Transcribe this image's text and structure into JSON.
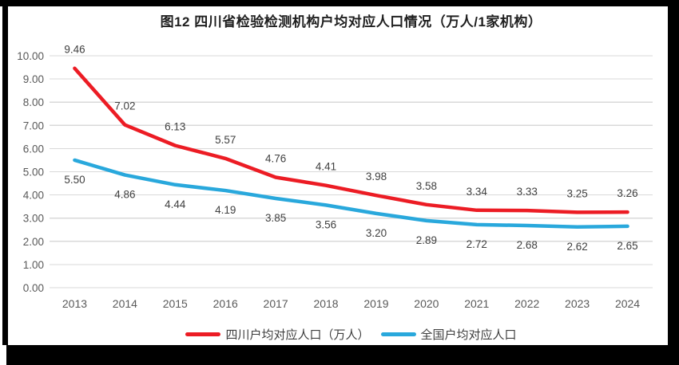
{
  "chart_data": {
    "type": "line",
    "title": "图12 四川省检验检测机构户均对应人口情况（万人/1家机构）",
    "categories": [
      "2013",
      "2014",
      "2015",
      "2016",
      "2017",
      "2018",
      "2019",
      "2020",
      "2021",
      "2022",
      "2023",
      "2024"
    ],
    "series": [
      {
        "name": "四川户均对应人口（万人）",
        "color": "#EC1C24",
        "values": [
          9.46,
          7.02,
          6.13,
          5.57,
          4.76,
          4.41,
          3.98,
          3.58,
          3.34,
          3.33,
          3.25,
          3.26
        ],
        "data_label_position": "above"
      },
      {
        "name": "全国户均对应人口",
        "color": "#29A8DC",
        "values": [
          5.5,
          4.86,
          4.44,
          4.19,
          3.85,
          3.56,
          3.2,
          2.89,
          2.72,
          2.68,
          2.62,
          2.65
        ],
        "data_label_position": "below"
      }
    ],
    "y_axis": {
      "min": 0,
      "max": 10,
      "step": 1,
      "tick_labels": [
        "0.00",
        "1.00",
        "2.00",
        "3.00",
        "4.00",
        "5.00",
        "6.00",
        "7.00",
        "8.00",
        "9.00",
        "10.00"
      ]
    },
    "grid": true,
    "legend_position": "bottom",
    "colors": {
      "gridline": "#D9D9D9",
      "tick_text": "#595959",
      "data_label_text": "#404040",
      "title_text": "#1F1F1F"
    }
  }
}
